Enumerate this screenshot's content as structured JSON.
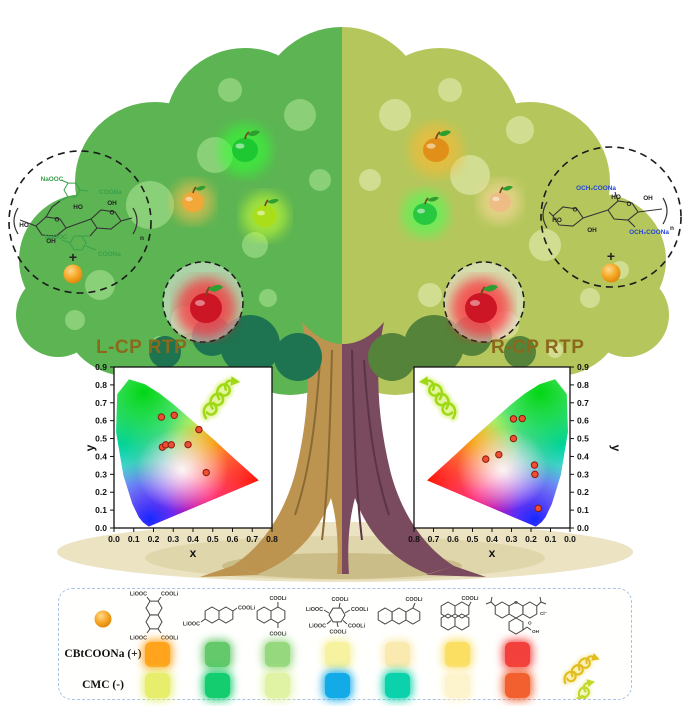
{
  "palette": {
    "canopy_left": "#5cb453",
    "canopy_left_light": "#93d57f",
    "canopy_left_dark": "#1e7350",
    "canopy_right": "#b5c75c",
    "canopy_right_light": "#d6e29a",
    "canopy_right_dark": "#55833a",
    "trunk_left": "#bd9350",
    "trunk_left_dark": "#8a6a34",
    "trunk_right": "#7a4a5e",
    "trunk_right_dark": "#5c3448",
    "ground": "#ebe3c2",
    "ground_inner": "#ddd2a6",
    "ground_shadow": "#c9ba84",
    "title_color": "#8a6a1a",
    "panel_border": "#a9c3e6",
    "helix_green": "#9fd916",
    "helix_yellow": "#e0bd1d",
    "helix_yellow_green": "#c3d62a"
  },
  "left_circle": {
    "acid_top_left": "NaOOC",
    "acid_top_right": "COONa",
    "acid_bottom_left": "NaOOC",
    "acid_bottom_right": "COONa",
    "ho_1": "HO",
    "oh_1": "OH",
    "ho_2": "HO",
    "oh_2": "OH",
    "ring_o_1": "O",
    "ring_o_2": "O",
    "repeat": "n",
    "plus": "+"
  },
  "right_circle": {
    "ether_top": "OCH₂COONa",
    "ether_bottom": "OCH₂COONa",
    "ho_1": "HO",
    "oh_1": "OH",
    "ho_2": "HO",
    "oh_2": "OH",
    "ring_o_1": "O",
    "ring_o_2": "O",
    "repeat": "n",
    "plus": "+"
  },
  "apples": [
    {
      "side": "left",
      "color": "#1ec832",
      "glow": "#30ff30",
      "r": 14
    },
    {
      "side": "right",
      "color": "#e09018",
      "glow": "#ffb830",
      "r": 14
    },
    {
      "side": "left",
      "color": "#f2a838",
      "glow": "#ffc050",
      "r": 11
    },
    {
      "side": "left",
      "color": "#aade18",
      "glow": "#ccff33",
      "r": 12
    },
    {
      "side": "right",
      "color": "#28c840",
      "glow": "#44ff55",
      "r": 12
    },
    {
      "side": "right",
      "color": "#edbd85",
      "glow": "#ffd9a0",
      "r": 11
    },
    {
      "side": "left",
      "color": "#cc1525",
      "glow": "#ff2030",
      "r": 16
    },
    {
      "side": "right",
      "color": "#cc1525",
      "glow": "#ff2030",
      "r": 16
    }
  ],
  "chart_data": [
    {
      "type": "scatter",
      "title": "L-CP RTP",
      "xlabel": "x",
      "ylabel": "y",
      "xlim": [
        0,
        0.8
      ],
      "ylim": [
        0,
        0.9
      ],
      "x_reversed": false,
      "x_ticks": [
        "0.0",
        "0.1",
        "0.2",
        "0.3",
        "0.4",
        "0.5",
        "0.6",
        "0.7",
        "0.8"
      ],
      "y_ticks": [
        "0.0",
        "0.1",
        "0.2",
        "0.3",
        "0.4",
        "0.5",
        "0.6",
        "0.7",
        "0.8",
        "0.9"
      ],
      "background": "CIE 1931 chromaticity diagram horseshoe",
      "annotation": "glowing green left-handed helix arrow",
      "marker_color": "#ee4f30",
      "marker_edge": "#8b1a10",
      "points": [
        [
          0.24,
          0.62
        ],
        [
          0.305,
          0.63
        ],
        [
          0.43,
          0.55
        ],
        [
          0.245,
          0.452
        ],
        [
          0.262,
          0.465
        ],
        [
          0.29,
          0.465
        ],
        [
          0.375,
          0.466
        ],
        [
          0.467,
          0.31
        ]
      ]
    },
    {
      "type": "scatter",
      "title": "R-CP RTP",
      "xlabel": "x",
      "ylabel": "y",
      "xlim": [
        0,
        0.8
      ],
      "ylim": [
        0,
        0.9
      ],
      "x_reversed": true,
      "x_ticks": [
        "0.8",
        "0.7",
        "0.6",
        "0.5",
        "0.4",
        "0.3",
        "0.2",
        "0.1",
        "0.0"
      ],
      "y_ticks": [
        "0.0",
        "0.1",
        "0.2",
        "0.3",
        "0.4",
        "0.5",
        "0.6",
        "0.7",
        "0.8",
        "0.9"
      ],
      "background": "mirrored CIE 1931 chromaticity diagram horseshoe",
      "annotation": "glowing green right-handed helix arrow",
      "marker_color": "#ee4f30",
      "marker_edge": "#8b1a10",
      "points": [
        [
          0.29,
          0.61
        ],
        [
          0.245,
          0.612
        ],
        [
          0.29,
          0.5
        ],
        [
          0.365,
          0.41
        ],
        [
          0.432,
          0.385
        ],
        [
          0.182,
          0.352
        ],
        [
          0.18,
          0.3
        ],
        [
          0.163,
          0.11
        ]
      ]
    }
  ],
  "bottom_panel": {
    "molecules": [
      {
        "name": "naphthalene-1,4,5,8-tetracarboxylate",
        "labels": [
          "LiOOC",
          "COOLi",
          "LiOOC",
          "COOLi"
        ]
      },
      {
        "name": "naphthalene-2,6-dicarboxylate",
        "labels": [
          "LiOOC",
          "COOLi"
        ]
      },
      {
        "name": "naphthalene-1,4-dicarboxylate",
        "labels": [
          "COOLi",
          "COOLi"
        ]
      },
      {
        "name": "benzene-hexacarboxylate",
        "labels": [
          "COOLi",
          "LiOOC",
          "COOLi",
          "LiOOC",
          "COOLi",
          "COOLi"
        ]
      },
      {
        "name": "anthracene-1-carboxylate",
        "labels": [
          "COOLi"
        ]
      },
      {
        "name": "pyrene-1-carboxylate",
        "labels": [
          "COOLi"
        ]
      },
      {
        "name": "rhodamine-b",
        "labels": [
          "O",
          "Cl⁻",
          "O",
          "OH"
        ]
      }
    ],
    "rows": [
      {
        "label": "CBtCOONa (+)",
        "colors": [
          "#ffa41c",
          "#63c96a",
          "#95d87e",
          "#f6f2a0",
          "#fbeab0",
          "#fbdf63",
          "#f2413c"
        ]
      },
      {
        "label": "CMC (-)",
        "colors": [
          "#e6ee6b",
          "#13cd6f",
          "#e0f2a4",
          "#12abe8",
          "#0cd2ac",
          "#fdf3cd",
          "#f2602f"
        ]
      }
    ]
  }
}
